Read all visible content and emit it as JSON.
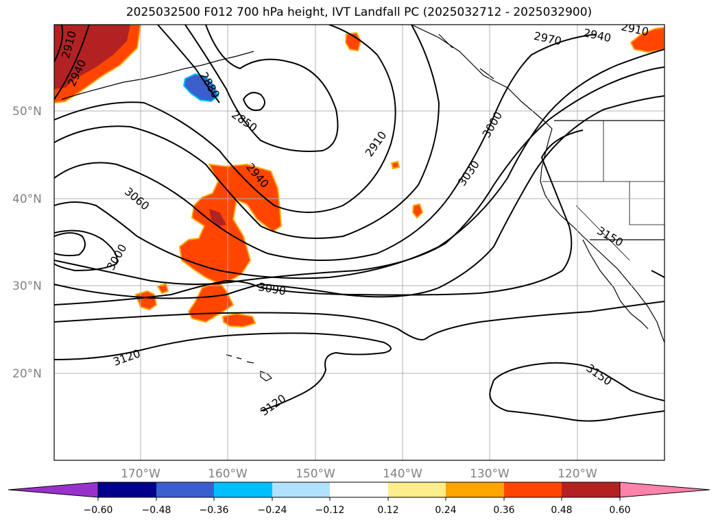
{
  "title": "2025032500 F012 700 hPa height, IVT Landfall PC (2025032712 - 2025032900)",
  "lat_labels": [
    "50°N",
    "40°N",
    "30°N",
    "20°N"
  ],
  "lon_labels": [
    "170°W",
    "160°W",
    "150°W",
    "140°W",
    "130°W",
    "120°W"
  ],
  "contour_labels": [
    "2910",
    "2940",
    "2880",
    "2850",
    "2910",
    "2940",
    "3000",
    "3030",
    "2970",
    "2940",
    "2910",
    "3060",
    "3000",
    "3090",
    "3120",
    "3120",
    "3150",
    "3150"
  ],
  "colorbar": {
    "ticks": [
      "−0.60",
      "−0.48",
      "−0.36",
      "−0.24",
      "−0.12",
      "0.12",
      "0.24",
      "0.36",
      "0.48",
      "0.60"
    ],
    "colors": [
      "#9932cc",
      "#00008b",
      "#3a5fcd",
      "#00bfff",
      "#b0e2ff",
      "#ffffff",
      "#ffec8b",
      "#ffa500",
      "#ff4500",
      "#b22222",
      "#ff82ab"
    ]
  },
  "colors": {
    "land_outline": "#000000",
    "grid": "#b0b0b0",
    "positive_ivt": "#ff4500",
    "positive_ivt_strong": "#b22222",
    "negative_ivt": "#3a5fcd"
  }
}
